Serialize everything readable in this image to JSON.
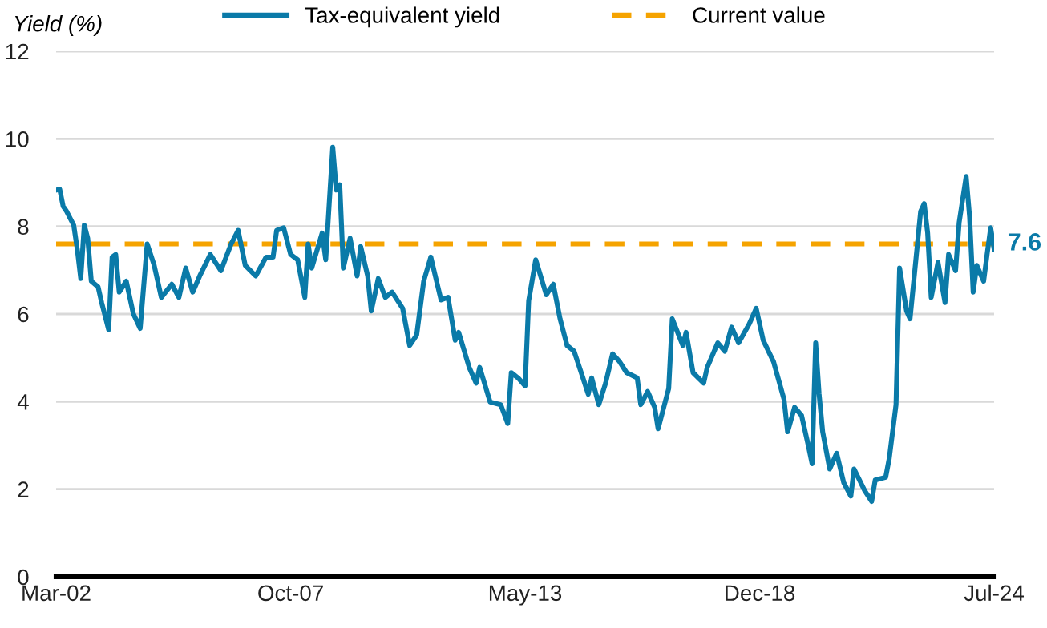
{
  "chart_data": {
    "type": "line",
    "ylabel": "Yield (%)",
    "x": [
      "2002-03",
      "2002-04",
      "2002-05",
      "2002-06",
      "2002-08",
      "2002-09",
      "2002-10",
      "2002-11",
      "2002-12",
      "2003-01",
      "2003-03",
      "2003-04",
      "2003-06",
      "2003-07",
      "2003-08",
      "2003-09",
      "2003-11",
      "2004-01",
      "2004-03",
      "2004-05",
      "2004-07",
      "2004-09",
      "2004-12",
      "2005-02",
      "2005-04",
      "2005-06",
      "2005-08",
      "2005-11",
      "2006-02",
      "2006-05",
      "2006-07",
      "2006-09",
      "2006-12",
      "2007-03",
      "2007-05",
      "2007-06",
      "2007-08",
      "2007-10",
      "2007-12",
      "2008-02",
      "2008-03",
      "2008-04",
      "2008-07",
      "2008-08",
      "2008-10",
      "2008-11",
      "2008-12",
      "2009-01",
      "2009-03",
      "2009-05",
      "2009-06",
      "2009-08",
      "2009-09",
      "2009-11",
      "2010-01",
      "2010-03",
      "2010-06",
      "2010-08",
      "2010-10",
      "2010-12",
      "2011-02",
      "2011-03",
      "2011-05",
      "2011-07",
      "2011-09",
      "2011-10",
      "2012-01",
      "2012-03",
      "2012-04",
      "2012-07",
      "2012-10",
      "2012-12",
      "2013-01",
      "2013-03",
      "2013-05",
      "2013-06",
      "2013-08",
      "2013-11",
      "2014-01",
      "2014-03",
      "2014-05",
      "2014-07",
      "2014-09",
      "2014-11",
      "2014-12",
      "2015-02",
      "2015-04",
      "2015-06",
      "2015-08",
      "2015-10",
      "2016-01",
      "2016-02",
      "2016-04",
      "2016-06",
      "2016-07",
      "2016-10",
      "2016-11",
      "2017-02",
      "2017-03",
      "2017-05",
      "2017-08",
      "2017-09",
      "2017-12",
      "2018-02",
      "2018-04",
      "2018-06",
      "2018-09",
      "2018-11",
      "2019-01",
      "2019-04",
      "2019-07",
      "2019-08",
      "2019-10",
      "2019-12",
      "2020-02",
      "2020-03",
      "2020-04",
      "2020-05",
      "2020-06",
      "2020-08",
      "2020-10",
      "2020-12",
      "2021-02",
      "2021-03",
      "2021-06",
      "2021-08",
      "2021-09",
      "2021-12",
      "2022-01",
      "2022-03",
      "2022-04",
      "2022-06",
      "2022-07",
      "2022-10",
      "2022-11",
      "2022-12",
      "2023-01",
      "2023-03",
      "2023-05",
      "2023-06",
      "2023-08",
      "2023-09",
      "2023-11",
      "2023-12",
      "2024-01",
      "2024-02",
      "2024-04",
      "2024-05",
      "2024-06",
      "2024-07"
    ],
    "series": [
      {
        "name": "Tax-equivalent yield",
        "color": "#0a7aa8",
        "values": [
          8.83,
          8.85,
          8.46,
          8.34,
          8.03,
          7.48,
          6.81,
          8.03,
          7.73,
          6.75,
          6.62,
          6.26,
          5.64,
          7.3,
          7.36,
          6.5,
          6.75,
          6.01,
          5.67,
          7.6,
          7.11,
          6.38,
          6.68,
          6.38,
          7.05,
          6.5,
          6.87,
          7.36,
          6.99,
          7.6,
          7.91,
          7.11,
          6.87,
          7.3,
          7.3,
          7.91,
          7.97,
          7.36,
          7.24,
          6.38,
          7.6,
          7.05,
          7.85,
          7.24,
          9.81,
          8.83,
          8.95,
          7.05,
          7.73,
          6.87,
          7.54,
          6.87,
          6.07,
          6.81,
          6.38,
          6.5,
          6.13,
          5.28,
          5.52,
          6.75,
          7.3,
          6.99,
          6.32,
          6.38,
          5.4,
          5.58,
          4.78,
          4.42,
          4.78,
          3.99,
          3.93,
          3.5,
          4.66,
          4.54,
          4.36,
          6.3,
          7.24,
          6.44,
          6.68,
          5.89,
          5.28,
          5.15,
          4.66,
          4.17,
          4.54,
          3.93,
          4.42,
          5.09,
          4.91,
          4.66,
          4.54,
          3.93,
          4.23,
          3.87,
          3.38,
          4.3,
          5.89,
          5.28,
          5.58,
          4.66,
          4.42,
          4.78,
          5.34,
          5.15,
          5.7,
          5.34,
          5.77,
          6.13,
          5.4,
          4.91,
          4.05,
          3.31,
          3.87,
          3.68,
          2.95,
          2.58,
          5.34,
          4.17,
          3.31,
          2.46,
          2.82,
          2.15,
          1.84,
          2.46,
          1.97,
          1.72,
          2.21,
          2.27,
          2.7,
          3.93,
          7.05,
          6.07,
          5.89,
          8.34,
          8.52,
          7.85,
          6.38,
          7.18,
          6.26,
          7.36,
          6.99,
          8.09,
          9.14,
          8.22,
          6.5,
          7.11,
          6.75,
          7.36,
          7.97,
          7.48
        ]
      }
    ],
    "ref_lines": [
      {
        "axis": "y",
        "value": 7.6,
        "label": "Current value",
        "color": "#f5a300",
        "line_style": "dashed"
      }
    ],
    "annotations": [
      {
        "text": "7.6",
        "x": "2024-07",
        "y": 7.6
      }
    ],
    "xlim": [
      "2002-03",
      "2024-07"
    ],
    "xticks": [
      {
        "value": "2002-03",
        "label": "Mar-02"
      },
      {
        "value": "2007-10",
        "label": "Oct-07"
      },
      {
        "value": "2013-05",
        "label": "May-13"
      },
      {
        "value": "2018-12",
        "label": "Dec-18"
      },
      {
        "value": "2024-07",
        "label": "Jul-24"
      }
    ],
    "ylim": [
      0,
      12
    ],
    "yticks": [
      0,
      2,
      4,
      6,
      8,
      10,
      12
    ],
    "grid": "y",
    "legend": "top",
    "line_style": "solid",
    "marker": "none"
  }
}
